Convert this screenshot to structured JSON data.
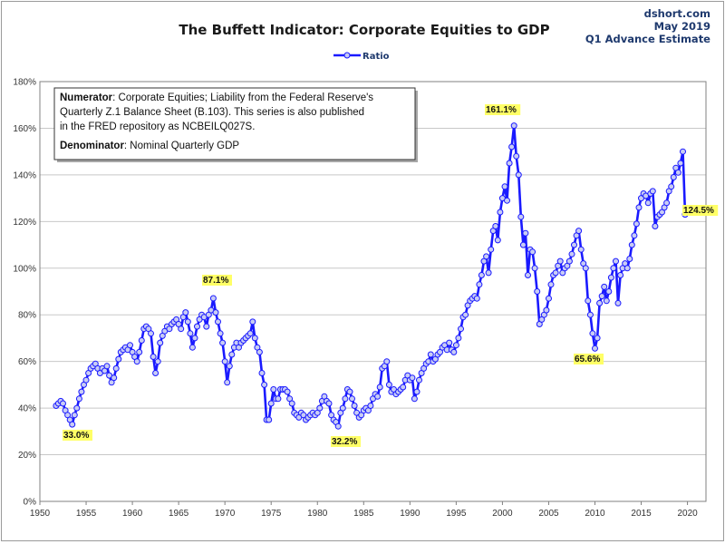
{
  "header": {
    "title": "The Buffett Indicator: Corporate Equities to GDP",
    "source": "dshort.com",
    "date": "May 2019",
    "estimate": "Q1 Advance Estimate"
  },
  "annotation": {
    "numerator_label": "Numerator",
    "numerator_line1": ": Corporate Equities; Liability from the Federal Reserve's",
    "numerator_line2": "Quarterly Z.1 Balance Sheet (B.103). This series is also published",
    "numerator_line3": "in the FRED repository  as NCBEILQ027S.",
    "denominator_label": "Denominator",
    "denominator_text": ": Nominal Quarterly GDP"
  },
  "colors": {
    "line": "#1a1aff",
    "marker_fill": "#c8ccf4",
    "label_bg": "#ffff66",
    "grid": "#c8c8c8"
  },
  "chart_data": {
    "type": "line",
    "xlabel": "",
    "ylabel": "",
    "xlim": [
      1950,
      2022
    ],
    "ylim": [
      0,
      180
    ],
    "xticks": [
      "1950",
      "1955",
      "1960",
      "1965",
      "1970",
      "1975",
      "1980",
      "1985",
      "1990",
      "1995",
      "2000",
      "2005",
      "2010",
      "2015",
      "2020"
    ],
    "yticks": [
      "0%",
      "20%",
      "40%",
      "60%",
      "80%",
      "100%",
      "120%",
      "140%",
      "160%",
      "180%"
    ],
    "grid": true,
    "legend": "top-center",
    "series": [
      {
        "name": "Ratio",
        "points": [
          [
            1951.75,
            41
          ],
          [
            1952.0,
            42
          ],
          [
            1952.25,
            43
          ],
          [
            1952.5,
            42
          ],
          [
            1952.75,
            39
          ],
          [
            1953.0,
            37
          ],
          [
            1953.25,
            35
          ],
          [
            1953.5,
            33
          ],
          [
            1953.75,
            37
          ],
          [
            1954.0,
            40
          ],
          [
            1954.25,
            44
          ],
          [
            1954.5,
            47
          ],
          [
            1954.75,
            50
          ],
          [
            1955.0,
            52
          ],
          [
            1955.25,
            55
          ],
          [
            1955.5,
            57
          ],
          [
            1955.75,
            58
          ],
          [
            1956.0,
            59
          ],
          [
            1956.25,
            57
          ],
          [
            1956.5,
            55
          ],
          [
            1956.75,
            57
          ],
          [
            1957.0,
            56
          ],
          [
            1957.25,
            58
          ],
          [
            1957.5,
            54
          ],
          [
            1957.75,
            51
          ],
          [
            1958.0,
            53
          ],
          [
            1958.25,
            57
          ],
          [
            1958.5,
            61
          ],
          [
            1958.75,
            64
          ],
          [
            1959.0,
            65
          ],
          [
            1959.25,
            66
          ],
          [
            1959.5,
            65
          ],
          [
            1959.75,
            67
          ],
          [
            1960.0,
            64
          ],
          [
            1960.25,
            62
          ],
          [
            1960.5,
            60
          ],
          [
            1960.75,
            64
          ],
          [
            1961.0,
            69
          ],
          [
            1961.25,
            74
          ],
          [
            1961.5,
            75
          ],
          [
            1961.75,
            74
          ],
          [
            1962.0,
            72
          ],
          [
            1962.25,
            62
          ],
          [
            1962.5,
            55
          ],
          [
            1962.75,
            60
          ],
          [
            1963.0,
            68
          ],
          [
            1963.25,
            71
          ],
          [
            1963.5,
            73
          ],
          [
            1963.75,
            75
          ],
          [
            1964.0,
            74
          ],
          [
            1964.25,
            76
          ],
          [
            1964.5,
            77
          ],
          [
            1964.75,
            78
          ],
          [
            1965.0,
            76
          ],
          [
            1965.25,
            74
          ],
          [
            1965.5,
            79
          ],
          [
            1965.75,
            81
          ],
          [
            1966.0,
            77
          ],
          [
            1966.25,
            72
          ],
          [
            1966.5,
            66
          ],
          [
            1966.75,
            70
          ],
          [
            1967.0,
            75
          ],
          [
            1967.25,
            78
          ],
          [
            1967.5,
            80
          ],
          [
            1967.75,
            79
          ],
          [
            1968.0,
            75
          ],
          [
            1968.25,
            80
          ],
          [
            1968.5,
            82
          ],
          [
            1968.75,
            87.1
          ],
          [
            1969.0,
            81
          ],
          [
            1969.25,
            77
          ],
          [
            1969.5,
            72
          ],
          [
            1969.75,
            68
          ],
          [
            1970.0,
            60
          ],
          [
            1970.25,
            51
          ],
          [
            1970.5,
            58
          ],
          [
            1970.75,
            63
          ],
          [
            1971.0,
            66
          ],
          [
            1971.25,
            68
          ],
          [
            1971.5,
            66
          ],
          [
            1971.75,
            68
          ],
          [
            1972.0,
            69
          ],
          [
            1972.25,
            70
          ],
          [
            1972.5,
            71
          ],
          [
            1972.75,
            72
          ],
          [
            1973.0,
            77
          ],
          [
            1973.25,
            70
          ],
          [
            1973.5,
            66
          ],
          [
            1973.75,
            64
          ],
          [
            1974.0,
            55
          ],
          [
            1974.25,
            50
          ],
          [
            1974.5,
            35
          ],
          [
            1974.75,
            35
          ],
          [
            1975.0,
            42
          ],
          [
            1975.25,
            48
          ],
          [
            1975.5,
            44
          ],
          [
            1975.75,
            44
          ],
          [
            1976.0,
            48
          ],
          [
            1976.25,
            48
          ],
          [
            1976.5,
            48
          ],
          [
            1976.75,
            47
          ],
          [
            1977.0,
            44
          ],
          [
            1977.25,
            42
          ],
          [
            1977.5,
            38
          ],
          [
            1977.75,
            37
          ],
          [
            1978.0,
            36
          ],
          [
            1978.25,
            38
          ],
          [
            1978.5,
            37
          ],
          [
            1978.75,
            35
          ],
          [
            1979.0,
            36
          ],
          [
            1979.25,
            37
          ],
          [
            1979.5,
            38
          ],
          [
            1979.75,
            37
          ],
          [
            1980.0,
            38
          ],
          [
            1980.25,
            40
          ],
          [
            1980.5,
            43
          ],
          [
            1980.75,
            45
          ],
          [
            1981.0,
            43
          ],
          [
            1981.25,
            42
          ],
          [
            1981.5,
            37
          ],
          [
            1981.75,
            35
          ],
          [
            1982.0,
            34
          ],
          [
            1982.25,
            32.2
          ],
          [
            1982.5,
            38
          ],
          [
            1982.75,
            40
          ],
          [
            1983.0,
            44
          ],
          [
            1983.25,
            48
          ],
          [
            1983.5,
            47
          ],
          [
            1983.75,
            44
          ],
          [
            1984.0,
            41
          ],
          [
            1984.25,
            38
          ],
          [
            1984.5,
            36
          ],
          [
            1984.75,
            37
          ],
          [
            1985.0,
            39
          ],
          [
            1985.25,
            40
          ],
          [
            1985.5,
            39
          ],
          [
            1985.75,
            41
          ],
          [
            1986.0,
            44
          ],
          [
            1986.25,
            46
          ],
          [
            1986.5,
            45
          ],
          [
            1986.75,
            49
          ],
          [
            1987.0,
            57
          ],
          [
            1987.25,
            58
          ],
          [
            1987.5,
            60
          ],
          [
            1987.75,
            50
          ],
          [
            1988.0,
            47
          ],
          [
            1988.25,
            48
          ],
          [
            1988.5,
            46
          ],
          [
            1988.75,
            47
          ],
          [
            1989.0,
            48
          ],
          [
            1989.25,
            49
          ],
          [
            1989.5,
            52
          ],
          [
            1989.75,
            54
          ],
          [
            1990.0,
            52
          ],
          [
            1990.25,
            53
          ],
          [
            1990.5,
            44
          ],
          [
            1990.75,
            47
          ],
          [
            1991.0,
            52
          ],
          [
            1991.25,
            55
          ],
          [
            1991.5,
            57
          ],
          [
            1991.75,
            59
          ],
          [
            1992.0,
            60
          ],
          [
            1992.25,
            63
          ],
          [
            1992.5,
            60
          ],
          [
            1992.75,
            61
          ],
          [
            1993.0,
            63
          ],
          [
            1993.25,
            64
          ],
          [
            1993.5,
            66
          ],
          [
            1993.75,
            67
          ],
          [
            1994.0,
            65
          ],
          [
            1994.25,
            68
          ],
          [
            1994.5,
            65
          ],
          [
            1994.75,
            64
          ],
          [
            1995.0,
            67
          ],
          [
            1995.25,
            70
          ],
          [
            1995.5,
            74
          ],
          [
            1995.75,
            79
          ],
          [
            1996.0,
            80
          ],
          [
            1996.25,
            84
          ],
          [
            1996.5,
            86
          ],
          [
            1996.75,
            87
          ],
          [
            1997.0,
            88
          ],
          [
            1997.25,
            87
          ],
          [
            1997.5,
            93
          ],
          [
            1997.75,
            97
          ],
          [
            1998.0,
            103
          ],
          [
            1998.25,
            105
          ],
          [
            1998.5,
            98
          ],
          [
            1998.75,
            108
          ],
          [
            1999.0,
            116
          ],
          [
            1999.25,
            118
          ],
          [
            1999.5,
            112
          ],
          [
            1999.75,
            124
          ],
          [
            2000.0,
            130
          ],
          [
            2000.25,
            135
          ],
          [
            2000.5,
            129
          ],
          [
            2000.75,
            145
          ],
          [
            2001.0,
            152
          ],
          [
            2001.25,
            161.1
          ],
          [
            2001.5,
            148
          ],
          [
            2001.75,
            140
          ],
          [
            2002.0,
            122
          ],
          [
            2002.25,
            110
          ],
          [
            2002.5,
            115
          ],
          [
            2002.75,
            97
          ],
          [
            2003.0,
            108
          ],
          [
            2003.25,
            107
          ],
          [
            2003.5,
            100
          ],
          [
            2003.75,
            90
          ],
          [
            2004.0,
            76
          ],
          [
            2004.25,
            78
          ],
          [
            2004.5,
            80
          ],
          [
            2004.75,
            82
          ],
          [
            2005.0,
            87
          ],
          [
            2005.25,
            93
          ],
          [
            2005.5,
            97
          ],
          [
            2005.75,
            98
          ],
          [
            2006.0,
            101
          ],
          [
            2006.25,
            103
          ],
          [
            2006.5,
            98
          ],
          [
            2006.75,
            100
          ],
          [
            2007.0,
            101
          ],
          [
            2007.25,
            103
          ],
          [
            2007.5,
            106
          ],
          [
            2007.75,
            110
          ],
          [
            2008.0,
            114
          ],
          [
            2008.25,
            116
          ],
          [
            2008.5,
            108
          ],
          [
            2008.75,
            102
          ],
          [
            2009.0,
            100
          ],
          [
            2009.25,
            86
          ],
          [
            2009.5,
            80
          ],
          [
            2009.75,
            72
          ],
          [
            2010.0,
            65.6
          ],
          [
            2010.25,
            70
          ],
          [
            2010.5,
            85
          ],
          [
            2010.75,
            88
          ],
          [
            2011.0,
            92
          ],
          [
            2011.25,
            86
          ],
          [
            2011.5,
            90
          ],
          [
            2011.75,
            96
          ],
          [
            2012.0,
            100
          ],
          [
            2012.25,
            103
          ],
          [
            2012.5,
            85
          ],
          [
            2012.75,
            97
          ],
          [
            2013.0,
            100
          ],
          [
            2013.25,
            102
          ],
          [
            2013.5,
            100
          ],
          [
            2013.75,
            104
          ],
          [
            2014.0,
            110
          ],
          [
            2014.25,
            114
          ],
          [
            2014.5,
            119
          ],
          [
            2014.75,
            126
          ],
          [
            2015.0,
            130
          ],
          [
            2015.25,
            132
          ],
          [
            2015.5,
            131
          ],
          [
            2015.75,
            128
          ],
          [
            2016.0,
            132
          ],
          [
            2016.25,
            133
          ],
          [
            2016.5,
            118
          ],
          [
            2016.75,
            122
          ],
          [
            2017.0,
            123
          ],
          [
            2017.25,
            124
          ],
          [
            2017.5,
            126
          ],
          [
            2017.75,
            128
          ],
          [
            2018.0,
            133
          ],
          [
            2018.25,
            135
          ],
          [
            2018.5,
            139
          ],
          [
            2018.75,
            143
          ],
          [
            2019.0,
            141
          ],
          [
            2019.25,
            145
          ],
          [
            2019.5,
            150
          ],
          [
            2019.75,
            123
          ],
          [
            2020.0,
            124.5
          ]
        ]
      }
    ],
    "annotations": [
      "33.0%",
      "87.1%",
      "32.2%",
      "161.1%",
      "65.6%",
      "124.5%"
    ]
  }
}
